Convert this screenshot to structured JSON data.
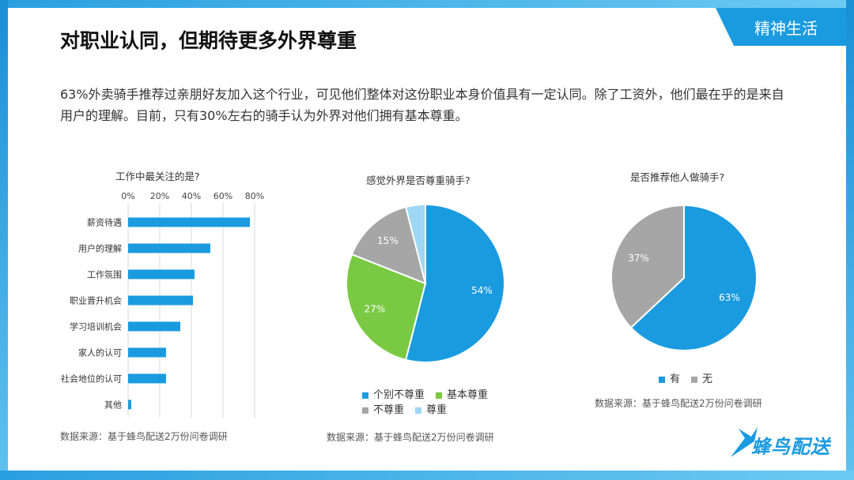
{
  "header": {
    "tag": "精神生活",
    "title": "对职业认同，但期待更多外界尊重"
  },
  "description": "63%外卖骑手推荐过亲朋好友加入这个行业，可见他们整体对这份职业本身价值具有一定认同。除了工资外，他们最在乎的是来自用户的理解。目前，只有30%左右的骑手认为外界对他们拥有基本尊重。",
  "colors": {
    "accent": "#1a9be0",
    "green": "#7ac943",
    "gray": "#a6a6a6",
    "light_blue": "#9fd6f3"
  },
  "chart_data": [
    {
      "type": "bar",
      "orientation": "horizontal",
      "title": "工作中最关注的是?",
      "categories": [
        "薪资待遇",
        "用户的理解",
        "工作氛围",
        "职业晋升机会",
        "学习培训机会",
        "家人的认可",
        "社会地位的认可",
        "其他"
      ],
      "values": [
        77,
        52,
        42,
        41,
        33,
        24,
        24,
        2
      ],
      "xlim": [
        0,
        80
      ],
      "xticks": [
        "0%",
        "20%",
        "40%",
        "60%",
        "80%"
      ],
      "grid": true,
      "source": "数据来源：基于蜂鸟配送2万份问卷调研"
    },
    {
      "type": "pie",
      "title": "感觉外界是否尊重骑手?",
      "labels": [
        "个别不尊重",
        "基本尊重",
        "不尊重",
        "尊重"
      ],
      "values": [
        54,
        27,
        15,
        4
      ],
      "value_labels": [
        "54%",
        "27%",
        "15%",
        ""
      ],
      "colors": [
        "#1a9be0",
        "#7ac943",
        "#a6a6a6",
        "#9fd6f3"
      ],
      "legend": "bottom",
      "source": "数据来源：基于蜂鸟配送2万份问卷调研"
    },
    {
      "type": "pie",
      "title": "是否推荐他人做骑手?",
      "labels": [
        "有",
        "无"
      ],
      "values": [
        63,
        37
      ],
      "value_labels": [
        "63%",
        "37%"
      ],
      "colors": [
        "#1a9be0",
        "#a6a6a6"
      ],
      "legend": "bottom",
      "source": "数据来源：基于蜂鸟配送2万份问卷调研"
    }
  ],
  "logo": {
    "text": "蜂鸟配送"
  }
}
